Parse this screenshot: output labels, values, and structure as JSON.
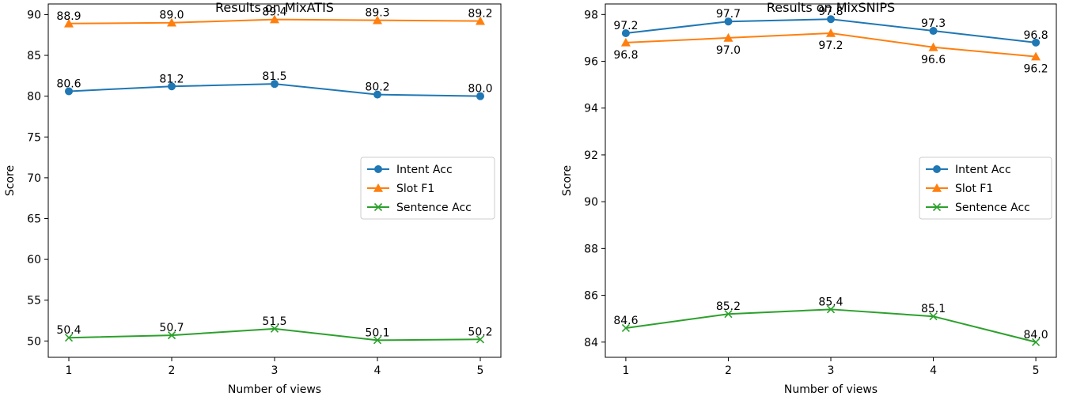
{
  "colors": {
    "intent": "#1f77b4",
    "slot": "#ff7f0e",
    "sentence": "#2ca02c"
  },
  "chart_data": [
    {
      "type": "line",
      "title": "Results on MixATIS",
      "xlabel": "Number of views",
      "ylabel": "Score",
      "x": [
        1,
        2,
        3,
        4,
        5
      ],
      "xlim": [
        0.8,
        5.2
      ],
      "ylim": [
        48.0,
        91.3
      ],
      "yticks": [
        50,
        55,
        60,
        65,
        70,
        75,
        80,
        85,
        90
      ],
      "grid": false,
      "legend_position": "center-right",
      "series": [
        {
          "name": "Intent Acc",
          "marker": "circle",
          "color_key": "intent",
          "values": [
            80.6,
            81.2,
            81.5,
            80.2,
            80.0
          ],
          "labels": [
            "80.6",
            "81.2",
            "81.5",
            "80.2",
            "80.0"
          ],
          "label_pos": "above"
        },
        {
          "name": "Slot F1",
          "marker": "triangle",
          "color_key": "slot",
          "values": [
            88.9,
            89.0,
            89.4,
            89.3,
            89.2
          ],
          "labels": [
            "88.9",
            "89.0",
            "89.4",
            "89.3",
            "89.2"
          ],
          "label_pos": "above"
        },
        {
          "name": "Sentence Acc",
          "marker": "x",
          "color_key": "sentence",
          "values": [
            50.4,
            50.7,
            51.5,
            50.1,
            50.2
          ],
          "labels": [
            "50.4",
            "50.7",
            "51.5",
            "50.1",
            "50.2"
          ],
          "label_pos": "above"
        }
      ]
    },
    {
      "type": "line",
      "title": "Results on MixSNIPS",
      "xlabel": "Number of views",
      "ylabel": "Score",
      "x": [
        1,
        2,
        3,
        4,
        5
      ],
      "xlim": [
        0.8,
        5.2
      ],
      "ylim": [
        83.35,
        98.45
      ],
      "yticks": [
        84,
        86,
        88,
        90,
        92,
        94,
        96,
        98
      ],
      "grid": false,
      "legend_position": "center-right",
      "series": [
        {
          "name": "Intent Acc",
          "marker": "circle",
          "color_key": "intent",
          "values": [
            97.2,
            97.7,
            97.8,
            97.3,
            96.8
          ],
          "labels": [
            "97.2",
            "97.7",
            "97.8",
            "97.3",
            "96.8"
          ],
          "label_pos": "above"
        },
        {
          "name": "Slot F1",
          "marker": "triangle",
          "color_key": "slot",
          "values": [
            96.8,
            97.0,
            97.2,
            96.6,
            96.2
          ],
          "labels": [
            "96.8",
            "97.0",
            "97.2",
            "96.6",
            "96.2"
          ],
          "label_pos": "below"
        },
        {
          "name": "Sentence Acc",
          "marker": "x",
          "color_key": "sentence",
          "values": [
            84.6,
            85.2,
            85.4,
            85.1,
            84.0
          ],
          "labels": [
            "84.6",
            "85.2",
            "85.4",
            "85.1",
            "84.0"
          ],
          "label_pos": "above"
        }
      ]
    }
  ]
}
